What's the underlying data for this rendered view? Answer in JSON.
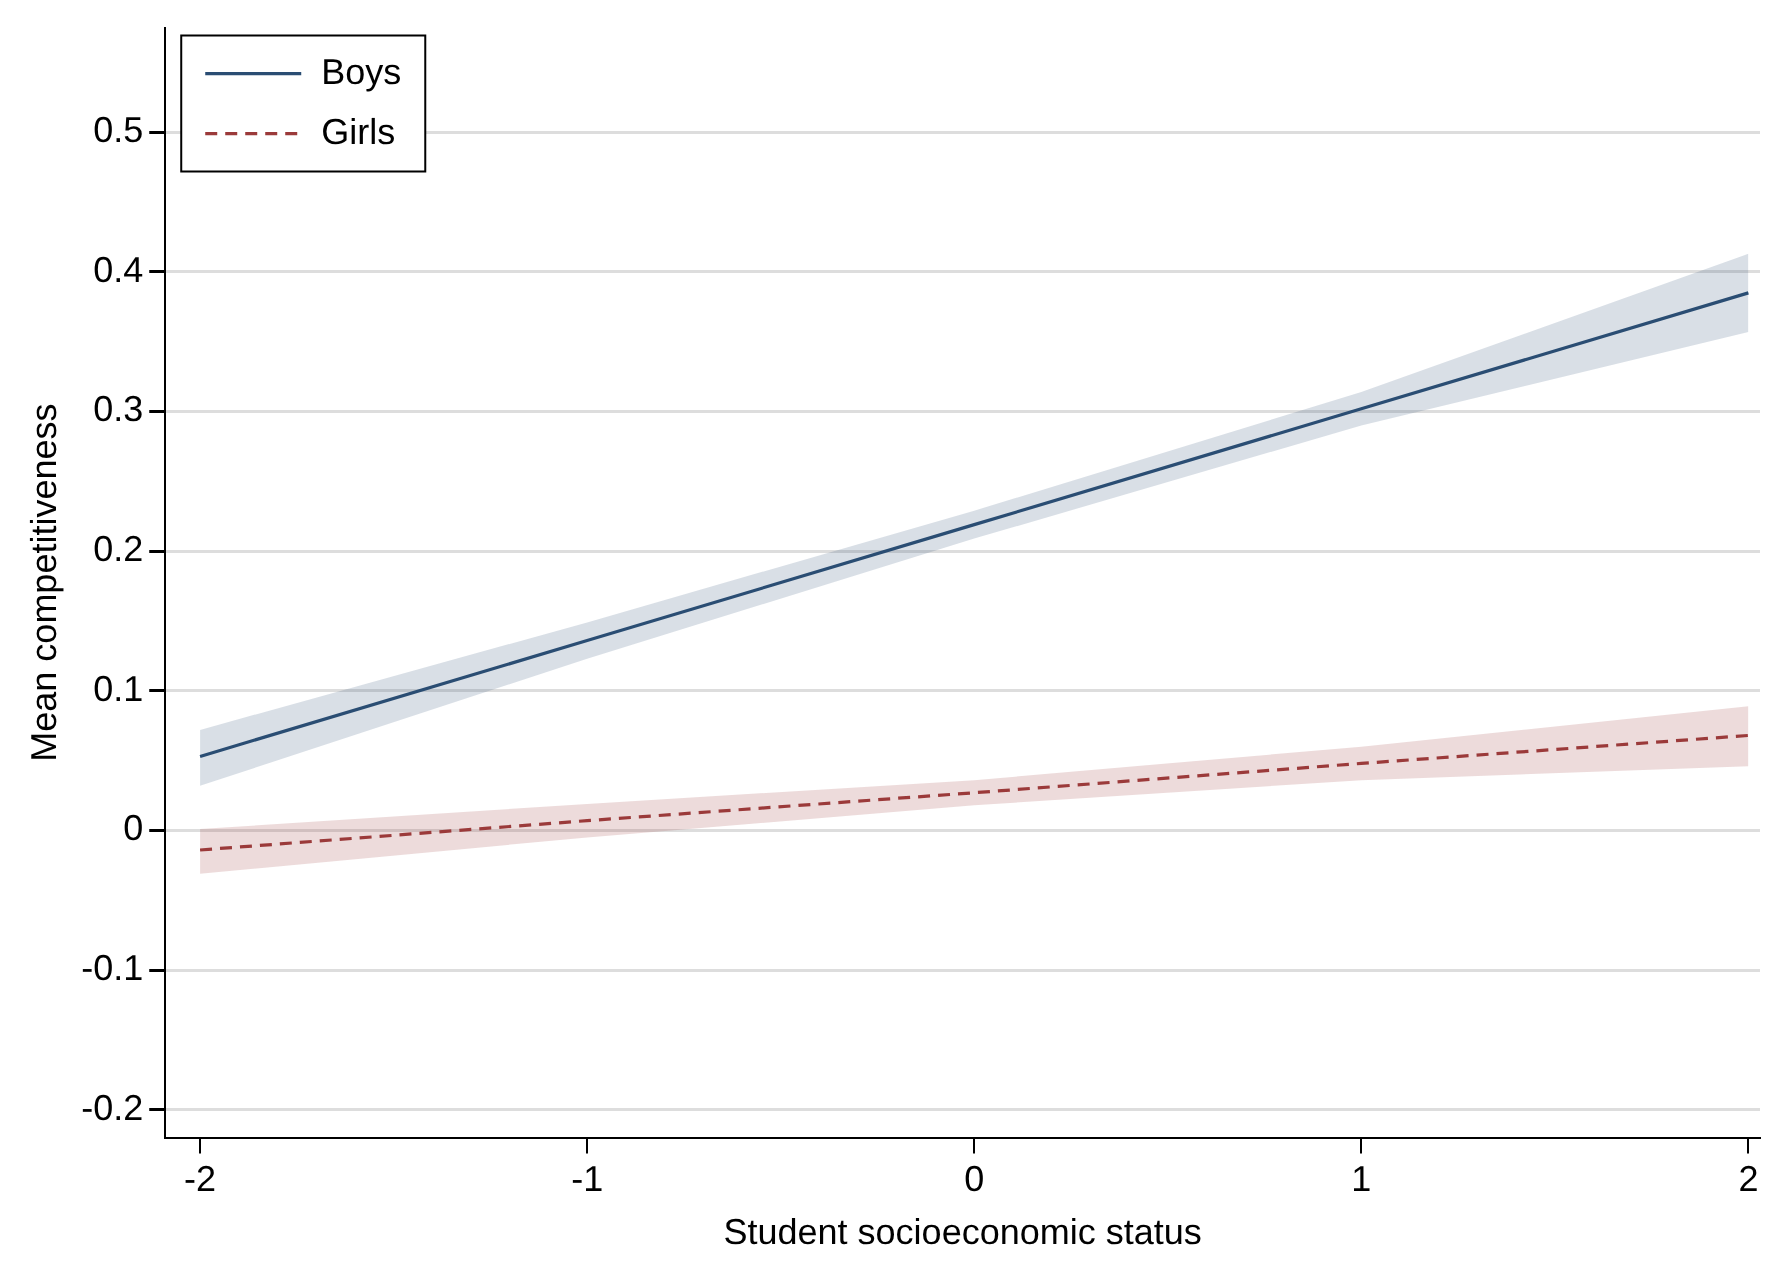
{
  "chart_data": {
    "type": "line",
    "xlabel": "Student socioeconomic status",
    "ylabel": "Mean competitiveness",
    "x": [
      -2,
      -1,
      0,
      1,
      2
    ],
    "xlim": [
      -2.09,
      2.03
    ],
    "xticks": [
      -2,
      -1,
      0,
      1,
      2
    ],
    "ylim": [
      -0.22,
      0.575
    ],
    "yticks": [
      -0.2,
      -0.1,
      0,
      0.1,
      0.2,
      0.3,
      0.4,
      0.5
    ],
    "grid": "y",
    "legend": "top left",
    "marker": "none",
    "series": [
      {
        "name": "Boys",
        "color": "#2a4d73",
        "line_style": "solid",
        "values": [
          0.053,
          0.136,
          0.219,
          0.302,
          0.385
        ],
        "lower": [
          0.032,
          0.123,
          0.209,
          0.29,
          0.357
        ],
        "upper": [
          0.072,
          0.149,
          0.229,
          0.314,
          0.413
        ]
      },
      {
        "name": "Girls",
        "color": "#9b3a3a",
        "line_style": "dashed",
        "values": [
          -0.014,
          0.007,
          0.027,
          0.048,
          0.068
        ],
        "lower": [
          -0.031,
          -0.005,
          0.018,
          0.036,
          0.046
        ],
        "upper": [
          0.001,
          0.019,
          0.036,
          0.06,
          0.089
        ]
      }
    ]
  }
}
